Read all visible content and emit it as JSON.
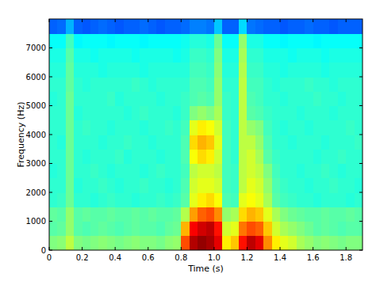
{
  "chart_data": {
    "type": "heatmap",
    "x_label": "Time (s)",
    "y_label": "Frequency (Hz)",
    "xlim": [
      0,
      1.9
    ],
    "ylim": [
      0,
      8000
    ],
    "xticks": [
      0,
      0.2,
      0.4,
      0.6,
      0.8,
      {
        "value": 1,
        "label": "1.0"
      },
      1.2,
      1.4,
      1.6,
      1.8
    ],
    "yticks": [
      0,
      1000,
      2000,
      3000,
      4000,
      5000,
      6000,
      7000
    ],
    "grid": false,
    "zlim": [
      0,
      10
    ],
    "x_edges": [
      0,
      0.05,
      0.1,
      0.15,
      0.2,
      0.25,
      0.3,
      0.35,
      0.4,
      0.45,
      0.5,
      0.55,
      0.6,
      0.65,
      0.7,
      0.75,
      0.8,
      0.85,
      0.9,
      0.95,
      1,
      1.05,
      1.1,
      1.15,
      1.2,
      1.25,
      1.3,
      1.35,
      1.4,
      1.45,
      1.5,
      1.55,
      1.6,
      1.65,
      1.7,
      1.75,
      1.8,
      1.85,
      1.9
    ],
    "y_edges": [
      0,
      500,
      1000,
      1500,
      2000,
      2500,
      3000,
      3500,
      4000,
      4500,
      5000,
      5500,
      6000,
      6500,
      7000,
      7500,
      8000
    ],
    "cells": [
      [
        5.0,
        5.1,
        5.6,
        5.0,
        4.9,
        5.0,
        5.1,
        5.0,
        4.9,
        5.0,
        5.1,
        5.0,
        5.0,
        4.9,
        5.1,
        5.2,
        8.0,
        9.5,
        9.8,
        9.6,
        9.0,
        6.4,
        6.8,
        8.6,
        9.4,
        9.0,
        7.4,
        6.4,
        6.0,
        5.8,
        5.4,
        5.2,
        5.0,
        5.1,
        5.0,
        4.9,
        5.0,
        5.0
      ],
      [
        4.6,
        4.7,
        5.2,
        4.6,
        4.5,
        4.6,
        4.7,
        4.6,
        4.5,
        4.6,
        4.7,
        4.6,
        4.6,
        4.5,
        4.7,
        4.8,
        7.0,
        8.8,
        9.2,
        9.4,
        8.6,
        5.8,
        6.0,
        7.6,
        8.0,
        7.8,
        6.8,
        5.8,
        5.4,
        5.2,
        5.0,
        4.8,
        4.6,
        4.7,
        4.6,
        4.5,
        4.6,
        4.6
      ],
      [
        4.7,
        4.6,
        5.2,
        4.6,
        4.7,
        4.6,
        4.6,
        4.7,
        4.6,
        4.6,
        4.7,
        4.6,
        4.7,
        4.6,
        4.6,
        4.7,
        5.5,
        7.2,
        7.8,
        8.0,
        7.4,
        5.2,
        5.4,
        6.6,
        7.0,
        6.8,
        6.0,
        5.4,
        5.0,
        4.8,
        4.7,
        4.6,
        4.6,
        4.7,
        4.6,
        4.6,
        4.7,
        4.6
      ],
      [
        4.2,
        4.3,
        4.8,
        4.2,
        4.2,
        4.1,
        4.2,
        4.3,
        4.2,
        4.2,
        4.1,
        4.2,
        4.2,
        4.3,
        4.2,
        4.3,
        4.6,
        6.0,
        6.4,
        6.6,
        6.2,
        4.5,
        4.4,
        6.0,
        6.2,
        6.0,
        5.4,
        4.6,
        4.4,
        4.3,
        4.2,
        4.2,
        4.1,
        4.2,
        4.2,
        4.2,
        4.1,
        4.2
      ],
      [
        4.2,
        4.2,
        4.8,
        4.1,
        4.2,
        4.2,
        4.3,
        4.2,
        4.1,
        4.2,
        4.2,
        4.3,
        4.2,
        4.2,
        4.1,
        4.2,
        4.5,
        5.8,
        6.0,
        6.0,
        5.8,
        4.4,
        4.3,
        5.6,
        6.0,
        5.8,
        5.2,
        4.5,
        4.3,
        4.2,
        4.2,
        4.1,
        4.2,
        4.2,
        4.3,
        4.2,
        4.2,
        4.1
      ],
      [
        4.1,
        4.2,
        4.8,
        4.2,
        4.2,
        4.3,
        4.2,
        4.1,
        4.2,
        4.2,
        4.2,
        4.1,
        4.2,
        4.3,
        4.2,
        4.2,
        4.4,
        5.6,
        5.8,
        5.8,
        5.6,
        4.4,
        4.3,
        5.6,
        5.8,
        5.6,
        5.0,
        4.4,
        4.2,
        4.2,
        4.1,
        4.2,
        4.2,
        4.3,
        4.2,
        4.1,
        4.2,
        4.2
      ],
      [
        4.2,
        4.2,
        4.8,
        4.2,
        4.1,
        4.2,
        4.2,
        4.2,
        4.3,
        4.1,
        4.2,
        4.2,
        4.2,
        4.1,
        4.2,
        4.2,
        4.5,
        6.2,
        6.6,
        6.4,
        5.8,
        4.4,
        4.2,
        5.6,
        5.8,
        5.4,
        4.6,
        4.3,
        4.2,
        4.2,
        4.2,
        4.2,
        4.1,
        4.2,
        4.2,
        4.3,
        4.2,
        4.2
      ],
      [
        4.2,
        4.1,
        4.8,
        4.2,
        4.2,
        4.2,
        4.1,
        4.2,
        4.2,
        4.3,
        4.2,
        4.2,
        4.1,
        4.2,
        4.2,
        4.2,
        4.5,
        6.6,
        7.0,
        6.8,
        6.0,
        4.4,
        4.2,
        5.6,
        5.6,
        5.2,
        4.5,
        4.2,
        4.2,
        4.1,
        4.2,
        4.2,
        4.2,
        4.1,
        4.2,
        4.2,
        4.2,
        4.3
      ],
      [
        4.2,
        4.2,
        4.8,
        4.2,
        4.3,
        4.2,
        4.2,
        4.1,
        4.2,
        4.2,
        4.2,
        4.1,
        4.2,
        4.2,
        4.3,
        4.2,
        4.4,
        6.0,
        6.4,
        6.2,
        5.8,
        4.4,
        4.2,
        5.6,
        5.2,
        5.0,
        4.4,
        4.2,
        4.1,
        4.2,
        4.2,
        4.1,
        4.2,
        4.2,
        4.2,
        4.2,
        4.3,
        4.2
      ],
      [
        4.2,
        4.2,
        4.8,
        4.1,
        4.2,
        4.2,
        4.2,
        4.2,
        4.2,
        4.1,
        4.2,
        4.3,
        4.2,
        4.2,
        4.2,
        4.1,
        4.3,
        5.0,
        5.2,
        5.0,
        5.4,
        4.3,
        4.2,
        5.6,
        4.6,
        4.5,
        4.3,
        4.2,
        4.2,
        4.2,
        4.1,
        4.2,
        4.2,
        4.2,
        4.1,
        4.2,
        4.2,
        4.2
      ],
      [
        4.1,
        4.2,
        4.8,
        4.2,
        4.2,
        4.2,
        4.2,
        4.3,
        4.1,
        4.2,
        4.2,
        4.2,
        4.2,
        4.1,
        4.2,
        4.2,
        4.3,
        4.5,
        4.6,
        4.5,
        5.2,
        4.3,
        4.2,
        5.6,
        4.5,
        4.4,
        4.2,
        4.2,
        4.1,
        4.2,
        4.2,
        4.2,
        4.3,
        4.2,
        4.2,
        4.1,
        4.2,
        4.2
      ],
      [
        4.2,
        4.2,
        4.7,
        4.2,
        4.1,
        4.2,
        4.2,
        4.2,
        4.2,
        4.2,
        4.3,
        4.2,
        4.1,
        4.2,
        4.2,
        4.2,
        4.2,
        4.5,
        4.5,
        4.4,
        5.2,
        4.2,
        4.2,
        5.6,
        4.4,
        4.4,
        4.2,
        4.1,
        4.2,
        4.2,
        4.2,
        4.3,
        4.2,
        4.2,
        4.1,
        4.2,
        4.2,
        4.2
      ],
      [
        4.1,
        4.1,
        4.7,
        4.1,
        4.1,
        4.1,
        4.0,
        4.1,
        4.1,
        4.1,
        4.1,
        4.0,
        4.1,
        4.1,
        4.1,
        4.1,
        4.1,
        4.4,
        4.4,
        4.3,
        5.1,
        4.1,
        4.1,
        5.5,
        4.3,
        4.3,
        4.1,
        4.1,
        4.0,
        4.1,
        4.1,
        4.1,
        4.1,
        4.0,
        4.1,
        4.1,
        4.1,
        4.1
      ],
      [
        4.0,
        4.0,
        4.6,
        4.0,
        4.0,
        3.9,
        4.0,
        4.0,
        4.0,
        4.0,
        3.9,
        4.0,
        4.0,
        4.0,
        4.0,
        3.9,
        4.0,
        4.3,
        4.3,
        4.2,
        5.0,
        4.0,
        4.0,
        5.4,
        4.2,
        4.2,
        4.0,
        4.0,
        4.0,
        3.9,
        4.0,
        4.0,
        4.0,
        3.9,
        4.0,
        4.0,
        4.0,
        4.0
      ],
      [
        3.8,
        3.8,
        4.4,
        3.7,
        3.8,
        3.8,
        3.8,
        3.7,
        3.8,
        3.8,
        3.8,
        3.7,
        3.8,
        3.8,
        3.8,
        3.8,
        3.9,
        4.1,
        4.1,
        4.0,
        4.8,
        3.8,
        3.8,
        5.2,
        4.0,
        4.0,
        3.8,
        3.8,
        3.7,
        3.8,
        3.8,
        3.8,
        3.7,
        3.8,
        3.8,
        3.8,
        3.8,
        3.8
      ],
      [
        2.2,
        2.3,
        3.0,
        2.2,
        2.1,
        2.2,
        2.3,
        2.2,
        2.1,
        2.2,
        2.2,
        2.3,
        2.2,
        2.1,
        2.2,
        2.2,
        2.3,
        2.5,
        2.5,
        2.4,
        3.2,
        2.2,
        2.2,
        3.4,
        2.4,
        2.3,
        2.2,
        2.2,
        2.1,
        2.2,
        2.2,
        2.3,
        2.2,
        2.2,
        2.1,
        2.2,
        2.2,
        2.2
      ]
    ]
  }
}
